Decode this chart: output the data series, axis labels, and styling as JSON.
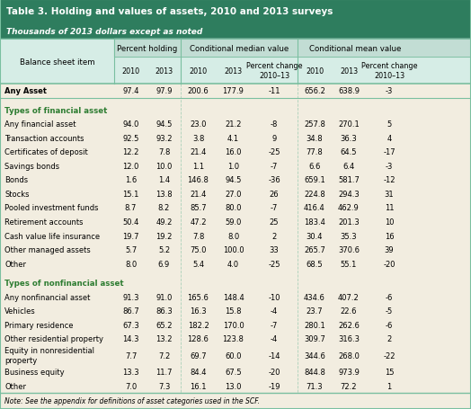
{
  "title": "Table 3. Holding and values of assets, 2010 and 2013 surveys",
  "subtitle": "Thousands of 2013 dollars except as noted",
  "title_bg": "#2e7d5e",
  "header_bg": "#d6ede6",
  "body_bg": "#f2ede0",
  "sep_color": "#7abfa0",
  "green_text": "#2e7d32",
  "note": "Note: See the appendix for definitions of asset categories used in the SCF.",
  "col_headers_l1": [
    "Percent holding",
    "Conditional median value",
    "Conditional mean value"
  ],
  "col_headers_l2": [
    "2010",
    "2013",
    "2010",
    "2013",
    "Percent change\n2010–13",
    "2010",
    "2013",
    "Percent change\n2010–13"
  ],
  "row_label_header": "Balance sheet item",
  "rows": [
    {
      "label": "Any Asset",
      "bold": true,
      "category": false,
      "spacer": false,
      "values": [
        "97.4",
        "97.9",
        "200.6",
        "177.9",
        "-11",
        "656.2",
        "638.9",
        "-3"
      ]
    },
    {
      "label": "",
      "bold": false,
      "category": false,
      "spacer": true,
      "values": [
        "",
        "",
        "",
        "",
        "",
        "",
        "",
        ""
      ]
    },
    {
      "label": "Types of financial asset",
      "bold": false,
      "category": true,
      "spacer": false,
      "values": [
        "",
        "",
        "",
        "",
        "",
        "",
        "",
        ""
      ]
    },
    {
      "label": "Any financial asset",
      "bold": false,
      "category": false,
      "spacer": false,
      "values": [
        "94.0",
        "94.5",
        "23.0",
        "21.2",
        "-8",
        "257.8",
        "270.1",
        "5"
      ]
    },
    {
      "label": "Transaction accounts",
      "bold": false,
      "category": false,
      "spacer": false,
      "values": [
        "92.5",
        "93.2",
        "3.8",
        "4.1",
        "9",
        "34.8",
        "36.3",
        "4"
      ]
    },
    {
      "label": "Certificates of deposit",
      "bold": false,
      "category": false,
      "spacer": false,
      "values": [
        "12.2",
        "7.8",
        "21.4",
        "16.0",
        "-25",
        "77.8",
        "64.5",
        "-17"
      ]
    },
    {
      "label": "Savings bonds",
      "bold": false,
      "category": false,
      "spacer": false,
      "values": [
        "12.0",
        "10.0",
        "1.1",
        "1.0",
        "-7",
        "6.6",
        "6.4",
        "-3"
      ]
    },
    {
      "label": "Bonds",
      "bold": false,
      "category": false,
      "spacer": false,
      "values": [
        "1.6",
        "1.4",
        "146.8",
        "94.5",
        "-36",
        "659.1",
        "581.7",
        "-12"
      ]
    },
    {
      "label": "Stocks",
      "bold": false,
      "category": false,
      "spacer": false,
      "values": [
        "15.1",
        "13.8",
        "21.4",
        "27.0",
        "26",
        "224.8",
        "294.3",
        "31"
      ]
    },
    {
      "label": "Pooled investment funds",
      "bold": false,
      "category": false,
      "spacer": false,
      "values": [
        "8.7",
        "8.2",
        "85.7",
        "80.0",
        "-7",
        "416.4",
        "462.9",
        "11"
      ]
    },
    {
      "label": "Retirement accounts",
      "bold": false,
      "category": false,
      "spacer": false,
      "values": [
        "50.4",
        "49.2",
        "47.2",
        "59.0",
        "25",
        "183.4",
        "201.3",
        "10"
      ]
    },
    {
      "label": "Cash value life insurance",
      "bold": false,
      "category": false,
      "spacer": false,
      "values": [
        "19.7",
        "19.2",
        "7.8",
        "8.0",
        "2",
        "30.4",
        "35.3",
        "16"
      ]
    },
    {
      "label": "Other managed assets",
      "bold": false,
      "category": false,
      "spacer": false,
      "values": [
        "5.7",
        "5.2",
        "75.0",
        "100.0",
        "33",
        "265.7",
        "370.6",
        "39"
      ]
    },
    {
      "label": "Other",
      "bold": false,
      "category": false,
      "spacer": false,
      "values": [
        "8.0",
        "6.9",
        "5.4",
        "4.0",
        "-25",
        "68.5",
        "55.1",
        "-20"
      ]
    },
    {
      "label": "",
      "bold": false,
      "category": false,
      "spacer": true,
      "values": [
        "",
        "",
        "",
        "",
        "",
        "",
        "",
        ""
      ]
    },
    {
      "label": "Types of nonfinancial asset",
      "bold": false,
      "category": true,
      "spacer": false,
      "values": [
        "",
        "",
        "",
        "",
        "",
        "",
        "",
        ""
      ]
    },
    {
      "label": "Any nonfinancial asset",
      "bold": false,
      "category": false,
      "spacer": false,
      "values": [
        "91.3",
        "91.0",
        "165.6",
        "148.4",
        "-10",
        "434.6",
        "407.2",
        "-6"
      ]
    },
    {
      "label": "Vehicles",
      "bold": false,
      "category": false,
      "spacer": false,
      "values": [
        "86.7",
        "86.3",
        "16.3",
        "15.8",
        "-4",
        "23.7",
        "22.6",
        "-5"
      ]
    },
    {
      "label": "Primary residence",
      "bold": false,
      "category": false,
      "spacer": false,
      "values": [
        "67.3",
        "65.2",
        "182.2",
        "170.0",
        "-7",
        "280.1",
        "262.6",
        "-6"
      ]
    },
    {
      "label": "Other residential property",
      "bold": false,
      "category": false,
      "spacer": false,
      "values": [
        "14.3",
        "13.2",
        "128.6",
        "123.8",
        "-4",
        "309.7",
        "316.3",
        "2"
      ]
    },
    {
      "label": "Equity in nonresidential\nproperty",
      "bold": false,
      "category": false,
      "spacer": false,
      "multiline": true,
      "values": [
        "7.7",
        "7.2",
        "69.7",
        "60.0",
        "-14",
        "344.6",
        "268.0",
        "-22"
      ]
    },
    {
      "label": "Business equity",
      "bold": false,
      "category": false,
      "spacer": false,
      "values": [
        "13.3",
        "11.7",
        "84.4",
        "67.5",
        "-20",
        "844.8",
        "973.9",
        "15"
      ]
    },
    {
      "label": "Other",
      "bold": false,
      "category": false,
      "spacer": false,
      "values": [
        "7.0",
        "7.3",
        "16.1",
        "13.0",
        "-19",
        "71.3",
        "72.2",
        "1"
      ]
    }
  ]
}
